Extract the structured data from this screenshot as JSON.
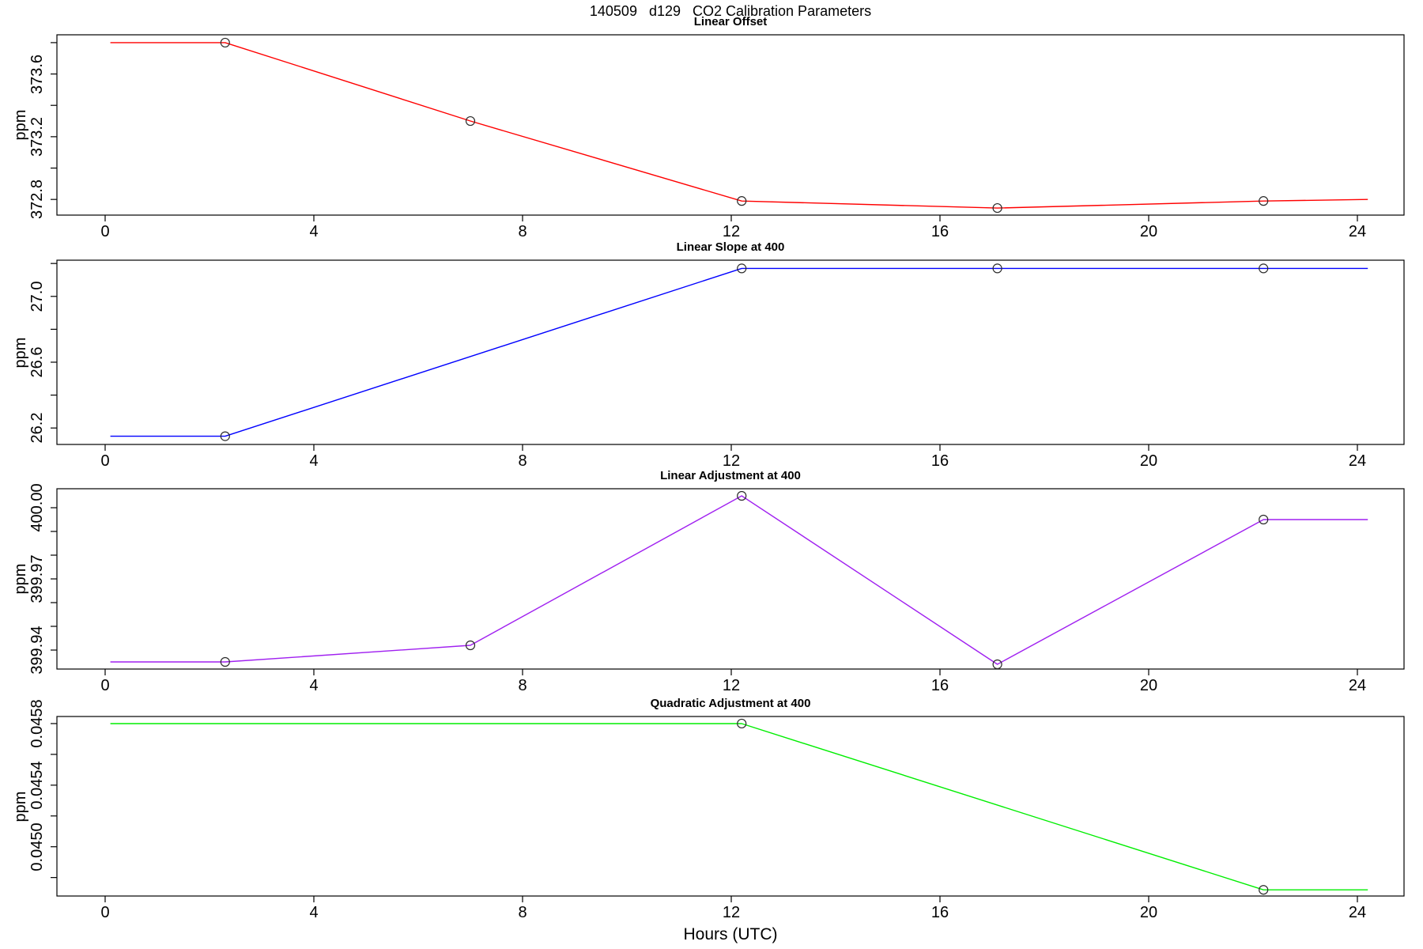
{
  "title": "140509   d129   CO2 Calibration Parameters",
  "xlabel": "Hours (UTC)",
  "chart_data": {
    "type": "line",
    "title": "140509   d129   CO2 Calibration Parameters",
    "xlabel": "Hours (UTC)",
    "x_axis": {
      "ticks": [
        0,
        4,
        8,
        12,
        16,
        20,
        24
      ],
      "tick_labels": [
        "0",
        "4",
        "8",
        "12",
        "16",
        "20",
        "24"
      ],
      "range": [
        -0.92,
        24.89
      ]
    },
    "marker_style": "open-circle",
    "grid": false,
    "legend": "none",
    "panels": [
      {
        "title": "Linear Offset",
        "ylabel": "ppm",
        "color": "#ff0000",
        "ylim": [
          372.7,
          373.85
        ],
        "yticks": [
          {
            "v": 372.8,
            "label": "372.8"
          },
          {
            "v": 373.0
          },
          {
            "v": 373.2,
            "label": "373.2"
          },
          {
            "v": 373.4
          },
          {
            "v": 373.6,
            "label": "373.6"
          },
          {
            "v": 373.8
          }
        ],
        "points": [
          {
            "x": 0.1,
            "y": 373.8
          },
          {
            "x": 2.3,
            "y": 373.8,
            "marker": true
          },
          {
            "x": 7.0,
            "y": 373.3,
            "marker": true
          },
          {
            "x": 12.2,
            "y": 372.79,
            "marker": true
          },
          {
            "x": 17.1,
            "y": 372.745,
            "marker": true
          },
          {
            "x": 22.2,
            "y": 372.79,
            "marker": true
          },
          {
            "x": 24.2,
            "y": 372.8
          }
        ]
      },
      {
        "title": "Linear Slope at 400",
        "ylabel": "ppm",
        "color": "#0000ff",
        "ylim": [
          26.1,
          27.22
        ],
        "yticks": [
          {
            "v": 26.2,
            "label": "26.2"
          },
          {
            "v": 26.4
          },
          {
            "v": 26.6,
            "label": "26.6"
          },
          {
            "v": 26.8
          },
          {
            "v": 27.0,
            "label": "27.0"
          },
          {
            "v": 27.2
          }
        ],
        "points": [
          {
            "x": 0.1,
            "y": 26.15
          },
          {
            "x": 2.3,
            "y": 26.15,
            "marker": true
          },
          {
            "x": 12.2,
            "y": 27.17,
            "marker": true
          },
          {
            "x": 17.1,
            "y": 27.17,
            "marker": true
          },
          {
            "x": 22.2,
            "y": 27.17,
            "marker": true
          },
          {
            "x": 24.2,
            "y": 27.17
          }
        ]
      },
      {
        "title": "Linear Adjustment at 400",
        "ylabel": "ppm",
        "color": "#a020f0",
        "ylim": [
          399.932,
          400.008
        ],
        "yticks": [
          {
            "v": 399.94,
            "label": "399.94"
          },
          {
            "v": 399.95
          },
          {
            "v": 399.96
          },
          {
            "v": 399.97,
            "label": "399.97"
          },
          {
            "v": 399.98
          },
          {
            "v": 399.99
          },
          {
            "v": 400.0,
            "label": "400.00"
          }
        ],
        "points": [
          {
            "x": 0.1,
            "y": 399.935
          },
          {
            "x": 2.3,
            "y": 399.935,
            "marker": true
          },
          {
            "x": 7.0,
            "y": 399.942,
            "marker": true
          },
          {
            "x": 12.2,
            "y": 400.005,
            "marker": true
          },
          {
            "x": 17.1,
            "y": 399.934,
            "marker": true
          },
          {
            "x": 22.2,
            "y": 399.995,
            "marker": true
          },
          {
            "x": 24.2,
            "y": 399.995
          }
        ]
      },
      {
        "title": "Quadratic Adjustment at 400",
        "ylabel": "ppm",
        "color": "#00ee00",
        "ylim": [
          0.04468,
          0.045846
        ],
        "yticks": [
          {
            "v": 0.0448
          },
          {
            "v": 0.045,
            "label": "0.0450"
          },
          {
            "v": 0.0452
          },
          {
            "v": 0.0454,
            "label": "0.0454"
          },
          {
            "v": 0.0456
          },
          {
            "v": 0.0458,
            "label": "0.0458"
          }
        ],
        "points": [
          {
            "x": 0.1,
            "y": 0.0458
          },
          {
            "x": 12.2,
            "y": 0.0458,
            "marker": true
          },
          {
            "x": 22.2,
            "y": 0.04472,
            "marker": true
          },
          {
            "x": 24.2,
            "y": 0.04472
          }
        ]
      }
    ]
  }
}
